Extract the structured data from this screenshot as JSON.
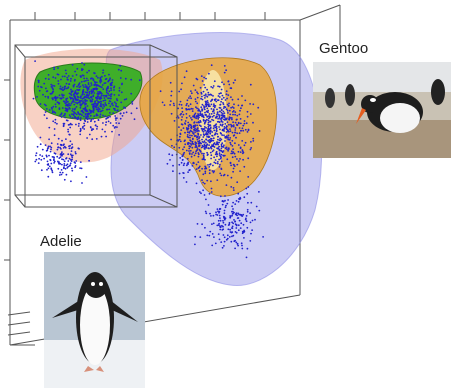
{
  "labels": {
    "gentoo": "Gentoo",
    "adelie": "Adelie"
  }
}
